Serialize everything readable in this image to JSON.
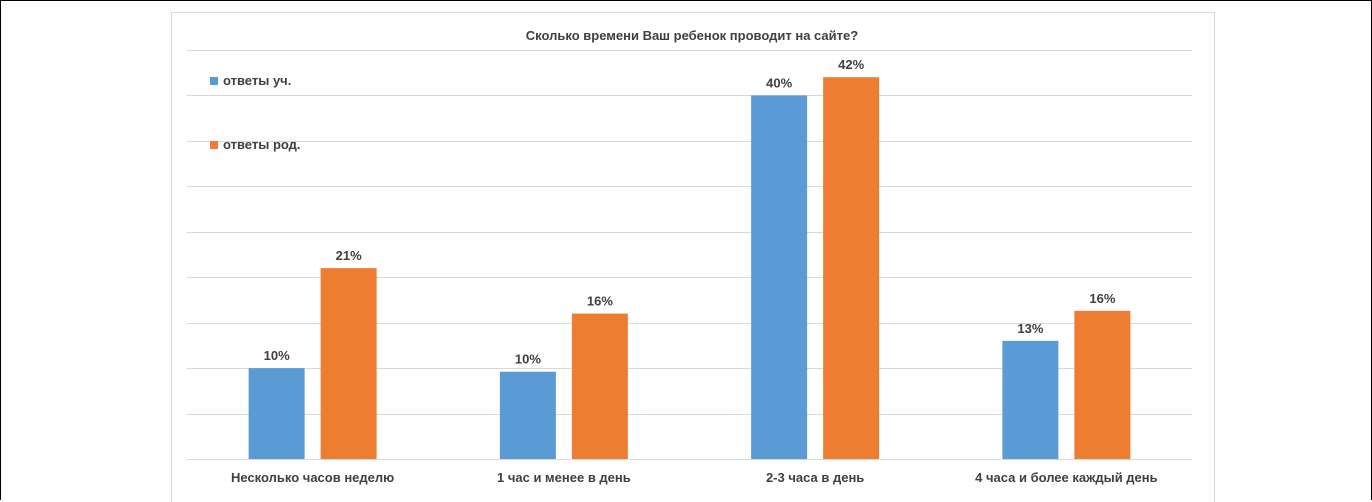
{
  "chart_data": {
    "type": "bar",
    "title": "Сколько времени Ваш ребенок проводит на сайте?",
    "categories": [
      "Несколько часов неделю",
      "1 час и менее в день",
      "2-3 часа в день",
      "4 часа и более  каждый день"
    ],
    "series": [
      {
        "name": "ответы уч.",
        "color": "#5b9bd5",
        "values": [
          10,
          9.6,
          40,
          13
        ],
        "labels": [
          "10%",
          "10%",
          "40%",
          "13%"
        ]
      },
      {
        "name": "ответы род.",
        "color": "#ed7d31",
        "values": [
          21,
          16,
          42,
          16.3
        ],
        "labels": [
          "21%",
          "16%",
          "42%",
          "16%"
        ]
      }
    ],
    "ylim": [
      0,
      45
    ],
    "grid": true,
    "legend": "top-left",
    "value_unit": "%"
  }
}
